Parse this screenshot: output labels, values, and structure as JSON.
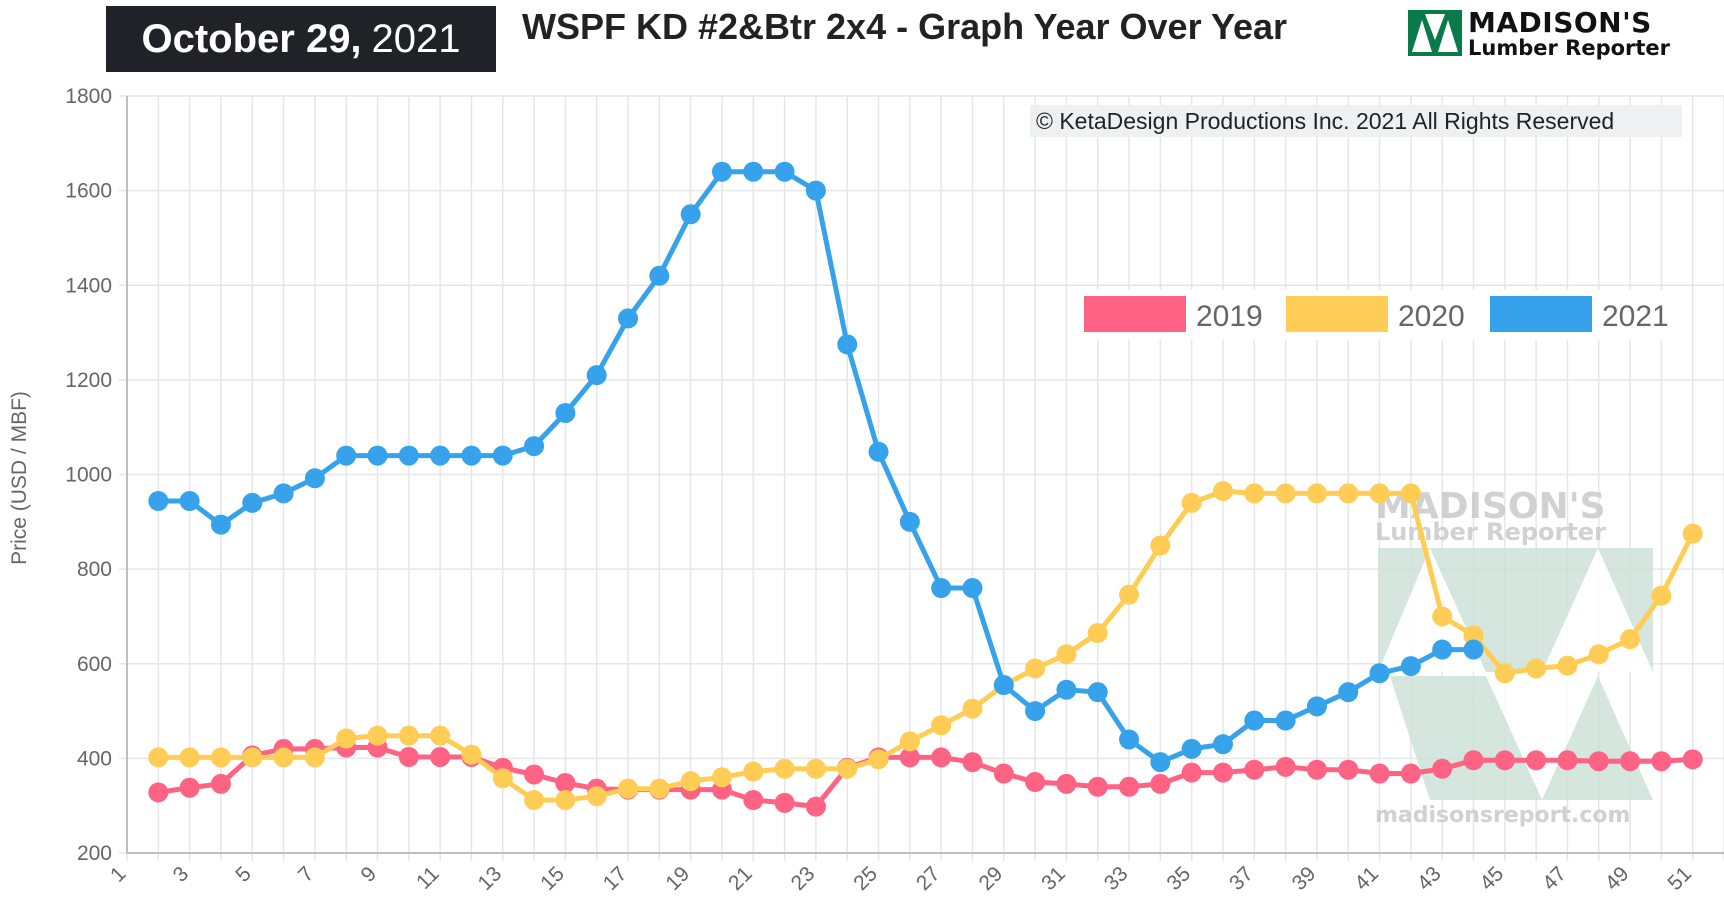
{
  "header": {
    "date_bold": "October 29,",
    "date_year": "2021",
    "title": "WSPF KD #2&Btr 2x4 - Graph Year Over Year",
    "logo_line1": "MADISON'S",
    "logo_line2": "Lumber Reporter"
  },
  "copyright": "© KetaDesign Productions Inc. 2021 All Rights Reserved",
  "watermark": {
    "line1": "MADISON'S",
    "line2": "Lumber Reporter",
    "url": "madisonsreport.com"
  },
  "colors": {
    "2019": "#ff6384",
    "2020": "#ffcd56",
    "2021": "#36a2eb",
    "grid": "#e6e6e6"
  },
  "chart_data": {
    "type": "line",
    "ylabel": "Price (USD / MBF)",
    "xlabel": "",
    "ylim": [
      200,
      1800
    ],
    "yticks": [
      "200",
      "400",
      "600",
      "800",
      "1000",
      "1200",
      "1400",
      "1600",
      "1800"
    ],
    "xlim": [
      1,
      52
    ],
    "xticks": [
      "1",
      "3",
      "5",
      "7",
      "9",
      "11",
      "13",
      "15",
      "17",
      "19",
      "21",
      "23",
      "25",
      "27",
      "29",
      "31",
      "33",
      "35",
      "37",
      "39",
      "41",
      "43",
      "45",
      "47",
      "49",
      "51"
    ],
    "legend_position": "top-right",
    "grid": true,
    "series": [
      {
        "name": "2019",
        "x": [
          2,
          3,
          4,
          5,
          6,
          7,
          8,
          9,
          10,
          11,
          12,
          13,
          14,
          15,
          16,
          17,
          18,
          19,
          20,
          21,
          22,
          23,
          24,
          25,
          26,
          27,
          28,
          29,
          30,
          31,
          32,
          33,
          34,
          35,
          36,
          37,
          38,
          39,
          40,
          41,
          42,
          43,
          44,
          45,
          46,
          47,
          48,
          49,
          50,
          51
        ],
        "values": [
          328,
          338,
          346,
          406,
          420,
          420,
          423,
          423,
          403,
          403,
          403,
          380,
          366,
          348,
          336,
          334,
          334,
          334,
          334,
          312,
          306,
          298,
          380,
          402,
          402,
          402,
          392,
          368,
          350,
          346,
          340,
          340,
          346,
          370,
          370,
          376,
          382,
          376,
          376,
          368,
          368,
          378,
          396,
          396,
          396,
          396,
          394,
          394,
          394,
          398
        ]
      },
      {
        "name": "2020",
        "x": [
          2,
          3,
          4,
          5,
          6,
          7,
          8,
          9,
          10,
          11,
          12,
          13,
          14,
          15,
          16,
          17,
          18,
          19,
          20,
          21,
          22,
          23,
          24,
          25,
          26,
          27,
          28,
          29,
          30,
          31,
          32,
          33,
          34,
          35,
          36,
          37,
          38,
          39,
          40,
          41,
          42,
          43,
          44,
          45,
          46,
          47,
          48,
          49,
          50,
          51
        ],
        "values": [
          402,
          402,
          402,
          402,
          402,
          402,
          442,
          448,
          448,
          448,
          408,
          358,
          312,
          312,
          320,
          336,
          336,
          352,
          360,
          372,
          378,
          378,
          378,
          398,
          436,
          470,
          505,
          555,
          590,
          620,
          665,
          746,
          850,
          940,
          965,
          960,
          960,
          960,
          960,
          960,
          960,
          700,
          660,
          580,
          590,
          596,
          620,
          652,
          744,
          875
        ]
      },
      {
        "name": "2021",
        "x": [
          2,
          3,
          4,
          5,
          6,
          7,
          8,
          9,
          10,
          11,
          12,
          13,
          14,
          15,
          16,
          17,
          18,
          19,
          20,
          21,
          22,
          23,
          24,
          25,
          26,
          27,
          28,
          29,
          30,
          31,
          32,
          33,
          34,
          35,
          36,
          37,
          38,
          39,
          40,
          41,
          42,
          43,
          44
        ],
        "values": [
          944,
          944,
          894,
          940,
          960,
          992,
          1040,
          1040,
          1040,
          1040,
          1040,
          1040,
          1060,
          1130,
          1210,
          1330,
          1420,
          1550,
          1640,
          1640,
          1640,
          1600,
          1275,
          1048,
          900,
          760,
          760,
          555,
          500,
          545,
          540,
          440,
          392,
          420,
          430,
          480,
          480,
          510,
          540,
          580,
          595,
          630,
          630
        ]
      }
    ]
  }
}
